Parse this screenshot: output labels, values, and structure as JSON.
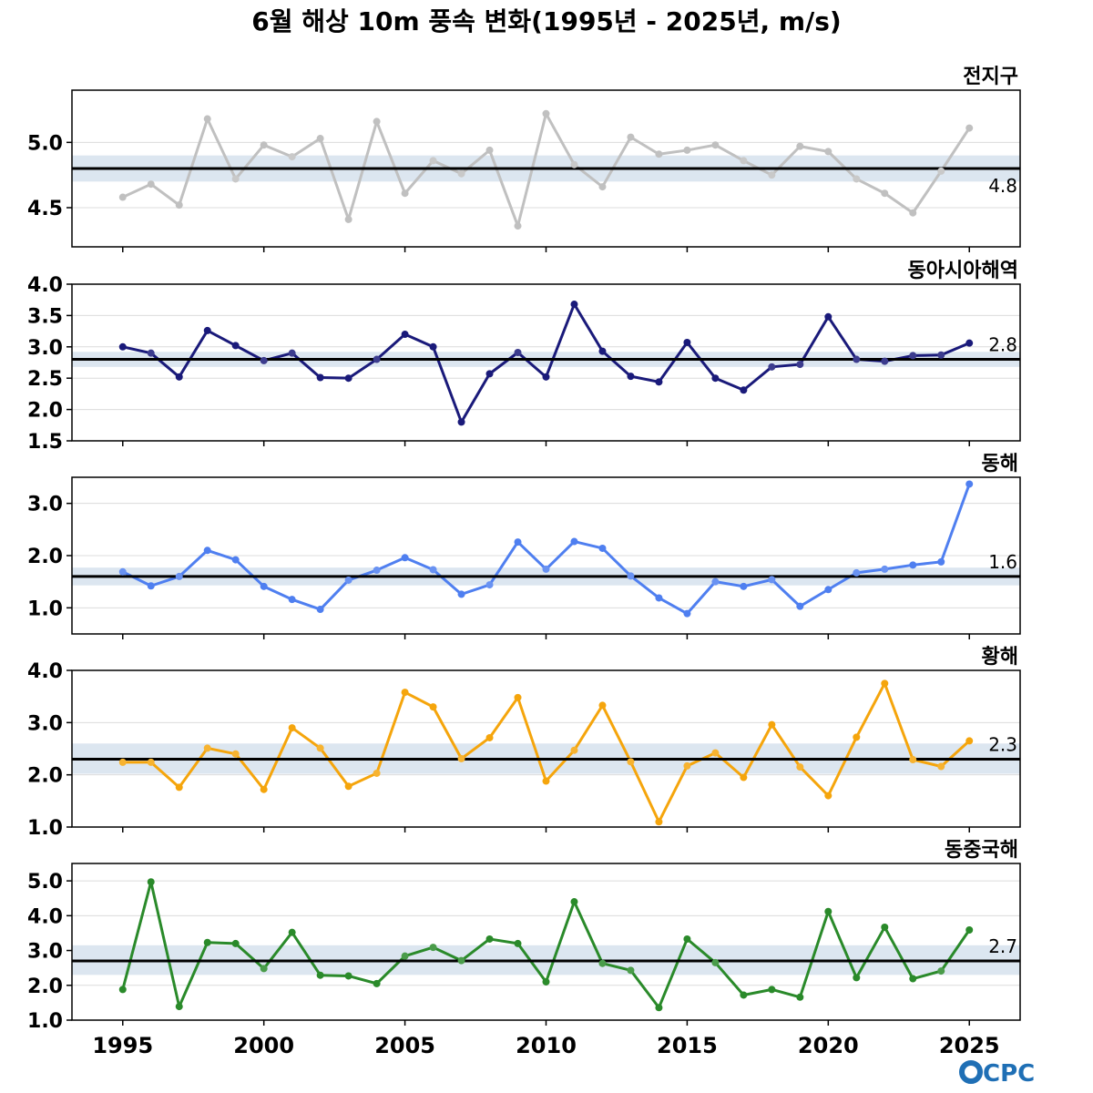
{
  "title": "6월 해상 10m 풍속 변화(1995년 - 2025년, m/s)",
  "logo": {
    "text": "OCPC",
    "color": "#1f6fb5"
  },
  "chart_data": [
    {
      "type": "line",
      "label": "전지구",
      "color": "#c0c0c0",
      "mean": 4.8,
      "mean_label": "4.8",
      "band": [
        4.7,
        4.9
      ],
      "ylim": [
        4.2,
        5.4
      ],
      "yticks": [
        4.5,
        5.0
      ],
      "ytick_labels": [
        "4.5",
        "5.0"
      ],
      "x": [
        1995,
        1996,
        1997,
        1998,
        1999,
        2000,
        2001,
        2002,
        2003,
        2004,
        2005,
        2006,
        2007,
        2008,
        2009,
        2010,
        2011,
        2012,
        2013,
        2014,
        2015,
        2016,
        2017,
        2018,
        2019,
        2020,
        2021,
        2022,
        2023,
        2024,
        2025
      ],
      "values": [
        4.58,
        4.68,
        4.52,
        5.18,
        4.72,
        4.98,
        4.89,
        5.03,
        4.41,
        5.16,
        4.61,
        4.86,
        4.76,
        4.94,
        4.36,
        5.22,
        4.83,
        4.66,
        5.04,
        4.91,
        4.94,
        4.98,
        4.86,
        4.75,
        4.97,
        4.93,
        4.72,
        4.61,
        4.46,
        4.78,
        5.11
      ]
    },
    {
      "type": "line",
      "label": "동아시아해역",
      "color": "#1a1a7a",
      "mean": 2.8,
      "mean_label": "2.8",
      "band": [
        2.68,
        2.92
      ],
      "ylim": [
        1.5,
        4.0
      ],
      "yticks": [
        1.5,
        2.0,
        2.5,
        3.0,
        3.5,
        4.0
      ],
      "ytick_labels": [
        "1.5",
        "2.0",
        "2.5",
        "3.0",
        "3.5",
        "4.0"
      ],
      "x": [
        1995,
        1996,
        1997,
        1998,
        1999,
        2000,
        2001,
        2002,
        2003,
        2004,
        2005,
        2006,
        2007,
        2008,
        2009,
        2010,
        2011,
        2012,
        2013,
        2014,
        2015,
        2016,
        2017,
        2018,
        2019,
        2020,
        2021,
        2022,
        2023,
        2024,
        2025
      ],
      "values": [
        3.0,
        2.9,
        2.52,
        3.26,
        3.02,
        2.78,
        2.9,
        2.51,
        2.5,
        2.8,
        3.2,
        3.0,
        1.8,
        2.57,
        2.91,
        2.52,
        3.68,
        2.93,
        2.53,
        2.44,
        3.07,
        2.5,
        2.31,
        2.68,
        2.72,
        3.48,
        2.8,
        2.77,
        2.86,
        2.87,
        3.06
      ]
    },
    {
      "type": "line",
      "label": "동해",
      "color": "#4f7ff0",
      "mean": 1.6,
      "mean_label": "1.6",
      "band": [
        1.43,
        1.77
      ],
      "ylim": [
        0.5,
        3.5
      ],
      "yticks": [
        1.0,
        2.0,
        3.0
      ],
      "ytick_labels": [
        "1.0",
        "2.0",
        "3.0"
      ],
      "x": [
        1995,
        1996,
        1997,
        1998,
        1999,
        2000,
        2001,
        2002,
        2003,
        2004,
        2005,
        2006,
        2007,
        2008,
        2009,
        2010,
        2011,
        2012,
        2013,
        2014,
        2015,
        2016,
        2017,
        2018,
        2019,
        2020,
        2021,
        2022,
        2023,
        2024,
        2025
      ],
      "values": [
        1.69,
        1.42,
        1.6,
        2.1,
        1.92,
        1.41,
        1.16,
        0.97,
        1.53,
        1.72,
        1.96,
        1.73,
        1.26,
        1.44,
        2.26,
        1.74,
        2.27,
        2.14,
        1.61,
        1.19,
        0.89,
        1.5,
        1.41,
        1.54,
        1.03,
        1.35,
        1.67,
        1.74,
        1.82,
        1.88,
        3.37
      ]
    },
    {
      "type": "line",
      "label": "황해",
      "color": "#f5a50c",
      "mean": 2.3,
      "mean_label": "2.3",
      "band": [
        2.02,
        2.6
      ],
      "ylim": [
        1.0,
        4.0
      ],
      "yticks": [
        1.0,
        2.0,
        3.0,
        4.0
      ],
      "ytick_labels": [
        "1.0",
        "2.0",
        "3.0",
        "4.0"
      ],
      "x": [
        1995,
        1996,
        1997,
        1998,
        1999,
        2000,
        2001,
        2002,
        2003,
        2004,
        2005,
        2006,
        2007,
        2008,
        2009,
        2010,
        2011,
        2012,
        2013,
        2014,
        2015,
        2016,
        2017,
        2018,
        2019,
        2020,
        2021,
        2022,
        2023,
        2024,
        2025
      ],
      "values": [
        2.24,
        2.24,
        1.76,
        2.51,
        2.4,
        1.72,
        2.9,
        2.51,
        1.78,
        2.03,
        3.58,
        3.3,
        2.31,
        2.71,
        3.48,
        1.88,
        2.47,
        3.33,
        2.25,
        1.1,
        2.17,
        2.42,
        1.95,
        2.96,
        2.15,
        1.6,
        2.72,
        3.75,
        2.29,
        2.16,
        2.65
      ]
    },
    {
      "type": "line",
      "label": "동중국해",
      "color": "#2a8a2a",
      "mean": 2.7,
      "mean_label": "2.7",
      "band": [
        2.3,
        3.15
      ],
      "ylim": [
        1.0,
        5.5
      ],
      "yticks": [
        1.0,
        2.0,
        3.0,
        4.0,
        5.0
      ],
      "ytick_labels": [
        "1.0",
        "2.0",
        "3.0",
        "4.0",
        "5.0"
      ],
      "x": [
        1995,
        1996,
        1997,
        1998,
        1999,
        2000,
        2001,
        2002,
        2003,
        2004,
        2005,
        2006,
        2007,
        2008,
        2009,
        2010,
        2011,
        2012,
        2013,
        2014,
        2015,
        2016,
        2017,
        2018,
        2019,
        2020,
        2021,
        2022,
        2023,
        2024,
        2025
      ],
      "values": [
        1.88,
        4.97,
        1.39,
        3.23,
        3.2,
        2.48,
        3.52,
        2.29,
        2.27,
        2.05,
        2.84,
        3.09,
        2.71,
        3.33,
        3.2,
        2.1,
        4.4,
        2.63,
        2.43,
        1.36,
        3.33,
        2.65,
        1.72,
        1.88,
        1.66,
        4.12,
        2.22,
        3.67,
        2.19,
        2.41,
        3.59
      ]
    }
  ],
  "x_axis": {
    "ticks": [
      1995,
      2000,
      2005,
      2010,
      2015,
      2020,
      2025
    ],
    "tick_labels": [
      "1995",
      "2000",
      "2005",
      "2010",
      "2015",
      "2020",
      "2025"
    ],
    "xlim": [
      1993.2,
      2026.8
    ]
  },
  "style": {
    "band_color": "#dce6f0",
    "mean_line_color": "#000000",
    "grid_color": "#dcdcdc"
  }
}
